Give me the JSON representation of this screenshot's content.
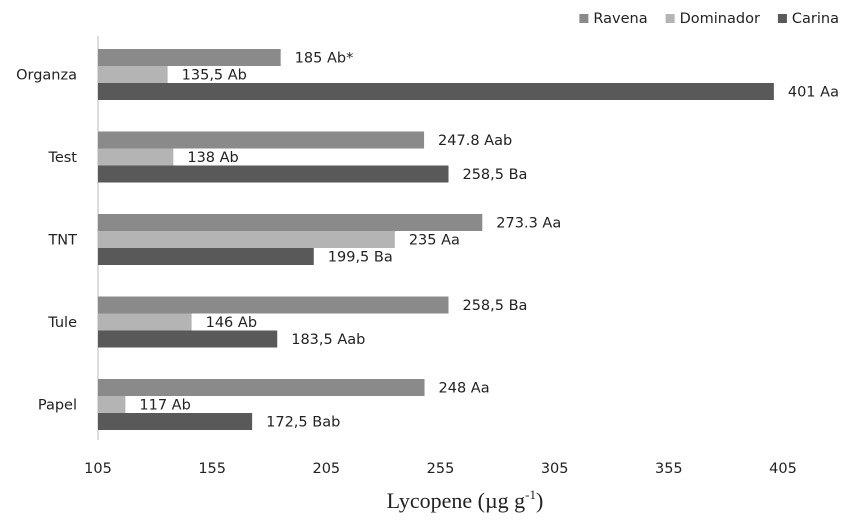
{
  "chart_data": {
    "type": "bar",
    "orientation": "horizontal",
    "categories": [
      "Organza",
      "Test",
      "TNT",
      "Tule",
      "Papel"
    ],
    "series": [
      {
        "name": "Ravena",
        "color": "#8a8a8a",
        "values": [
          185,
          247.8,
          273.3,
          258.5,
          248
        ],
        "labels": [
          "185 Ab*",
          "247.8 Aab",
          "273.3 Aa",
          "258,5 Ba",
          "248 Aa"
        ]
      },
      {
        "name": "Dominador",
        "color": "#b4b4b4",
        "values": [
          135.5,
          138,
          235,
          146,
          117
        ],
        "labels": [
          "135,5 Ab",
          "138 Ab",
          "235 Aa",
          "146 Ab",
          "117 Ab"
        ]
      },
      {
        "name": "Carina",
        "color": "#595959",
        "values": [
          401,
          258.5,
          199.5,
          183.5,
          172.5
        ],
        "labels": [
          "401 Aa",
          "258,5 Ba",
          "199,5 Ba",
          "183,5 Aab",
          "172,5 Bab"
        ]
      }
    ],
    "xlabel": "Lycopene (µg g",
    "xlabel_sup": "-1",
    "xlabel_close": ")",
    "xlim": [
      105,
      405
    ],
    "xticks": [
      "105",
      "155",
      "205",
      "255",
      "305",
      "355",
      "405"
    ],
    "legend_position": "top-right",
    "grid": false
  }
}
